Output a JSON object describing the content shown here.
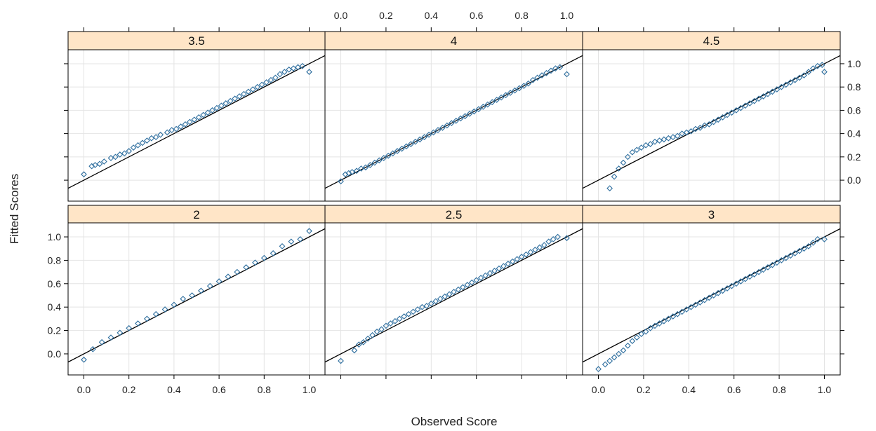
{
  "chart_data": {
    "type": "scatter",
    "layout": {
      "rows": 2,
      "cols": 3
    },
    "xlabel": "Observed Score",
    "ylabel": "Fitted Scores",
    "xlim": [
      -0.07,
      1.07
    ],
    "ylim": [
      -0.18,
      1.12
    ],
    "x_ticks": [
      "0.0",
      "0.2",
      "0.4",
      "0.6",
      "0.8",
      "1.0"
    ],
    "y_ticks": [
      "0.0",
      "0.2",
      "0.4",
      "0.6",
      "0.8",
      "1.0"
    ],
    "grid": true,
    "reference_line": {
      "slope": 1,
      "intercept": 0
    },
    "colors": {
      "points": "#2f6f9f",
      "strip": "#ffe5c7",
      "grid": "#e4e4e4",
      "line": "#000000",
      "frame": "#000000"
    },
    "panels": [
      {
        "label": "3.5",
        "points": [
          [
            0.0,
            0.05
          ],
          [
            0.035,
            0.12
          ],
          [
            0.05,
            0.13
          ],
          [
            0.07,
            0.14
          ],
          [
            0.09,
            0.16
          ],
          [
            0.12,
            0.19
          ],
          [
            0.14,
            0.2
          ],
          [
            0.16,
            0.22
          ],
          [
            0.18,
            0.23
          ],
          [
            0.2,
            0.25
          ],
          [
            0.22,
            0.28
          ],
          [
            0.24,
            0.3
          ],
          [
            0.26,
            0.32
          ],
          [
            0.28,
            0.34
          ],
          [
            0.3,
            0.36
          ],
          [
            0.32,
            0.37
          ],
          [
            0.34,
            0.39
          ],
          [
            0.37,
            0.41
          ],
          [
            0.39,
            0.43
          ],
          [
            0.41,
            0.44
          ],
          [
            0.43,
            0.46
          ],
          [
            0.45,
            0.48
          ],
          [
            0.47,
            0.5
          ],
          [
            0.49,
            0.52
          ],
          [
            0.51,
            0.54
          ],
          [
            0.53,
            0.56
          ],
          [
            0.55,
            0.58
          ],
          [
            0.57,
            0.6
          ],
          [
            0.59,
            0.62
          ],
          [
            0.61,
            0.64
          ],
          [
            0.63,
            0.66
          ],
          [
            0.65,
            0.68
          ],
          [
            0.67,
            0.7
          ],
          [
            0.69,
            0.72
          ],
          [
            0.71,
            0.74
          ],
          [
            0.73,
            0.76
          ],
          [
            0.75,
            0.78
          ],
          [
            0.77,
            0.8
          ],
          [
            0.79,
            0.82
          ],
          [
            0.81,
            0.84
          ],
          [
            0.83,
            0.86
          ],
          [
            0.85,
            0.88
          ],
          [
            0.87,
            0.91
          ],
          [
            0.89,
            0.93
          ],
          [
            0.91,
            0.95
          ],
          [
            0.93,
            0.96
          ],
          [
            0.95,
            0.97
          ],
          [
            0.97,
            0.98
          ],
          [
            1.0,
            0.93
          ]
        ]
      },
      {
        "label": "4",
        "points": [
          [
            0.0,
            -0.01
          ],
          [
            0.02,
            0.05
          ],
          [
            0.035,
            0.06
          ],
          [
            0.05,
            0.07
          ],
          [
            0.07,
            0.08
          ],
          [
            0.09,
            0.1
          ],
          [
            0.11,
            0.11
          ],
          [
            0.13,
            0.13
          ],
          [
            0.15,
            0.15
          ],
          [
            0.17,
            0.17
          ],
          [
            0.19,
            0.19
          ],
          [
            0.21,
            0.21
          ],
          [
            0.23,
            0.23
          ],
          [
            0.25,
            0.25
          ],
          [
            0.27,
            0.27
          ],
          [
            0.29,
            0.29
          ],
          [
            0.31,
            0.31
          ],
          [
            0.33,
            0.33
          ],
          [
            0.35,
            0.35
          ],
          [
            0.37,
            0.37
          ],
          [
            0.39,
            0.39
          ],
          [
            0.41,
            0.41
          ],
          [
            0.43,
            0.43
          ],
          [
            0.45,
            0.45
          ],
          [
            0.47,
            0.47
          ],
          [
            0.49,
            0.49
          ],
          [
            0.51,
            0.51
          ],
          [
            0.53,
            0.53
          ],
          [
            0.55,
            0.55
          ],
          [
            0.57,
            0.57
          ],
          [
            0.59,
            0.59
          ],
          [
            0.61,
            0.61
          ],
          [
            0.63,
            0.63
          ],
          [
            0.65,
            0.65
          ],
          [
            0.67,
            0.67
          ],
          [
            0.69,
            0.69
          ],
          [
            0.71,
            0.71
          ],
          [
            0.73,
            0.73
          ],
          [
            0.75,
            0.75
          ],
          [
            0.77,
            0.77
          ],
          [
            0.79,
            0.79
          ],
          [
            0.81,
            0.81
          ],
          [
            0.83,
            0.83
          ],
          [
            0.85,
            0.86
          ],
          [
            0.87,
            0.88
          ],
          [
            0.89,
            0.9
          ],
          [
            0.91,
            0.92
          ],
          [
            0.93,
            0.94
          ],
          [
            0.95,
            0.96
          ],
          [
            0.97,
            0.97
          ],
          [
            1.0,
            0.91
          ]
        ]
      },
      {
        "label": "4.5",
        "points": [
          [
            0.05,
            -0.07
          ],
          [
            0.07,
            0.03
          ],
          [
            0.09,
            0.1
          ],
          [
            0.11,
            0.15
          ],
          [
            0.13,
            0.2
          ],
          [
            0.15,
            0.24
          ],
          [
            0.17,
            0.26
          ],
          [
            0.19,
            0.28
          ],
          [
            0.21,
            0.3
          ],
          [
            0.23,
            0.31
          ],
          [
            0.25,
            0.33
          ],
          [
            0.27,
            0.34
          ],
          [
            0.29,
            0.35
          ],
          [
            0.31,
            0.36
          ],
          [
            0.33,
            0.37
          ],
          [
            0.35,
            0.38
          ],
          [
            0.37,
            0.4
          ],
          [
            0.39,
            0.41
          ],
          [
            0.41,
            0.42
          ],
          [
            0.43,
            0.44
          ],
          [
            0.45,
            0.45
          ],
          [
            0.47,
            0.47
          ],
          [
            0.49,
            0.48
          ],
          [
            0.51,
            0.5
          ],
          [
            0.53,
            0.52
          ],
          [
            0.55,
            0.54
          ],
          [
            0.57,
            0.56
          ],
          [
            0.59,
            0.58
          ],
          [
            0.61,
            0.6
          ],
          [
            0.63,
            0.62
          ],
          [
            0.65,
            0.64
          ],
          [
            0.67,
            0.66
          ],
          [
            0.69,
            0.68
          ],
          [
            0.71,
            0.7
          ],
          [
            0.73,
            0.72
          ],
          [
            0.75,
            0.74
          ],
          [
            0.77,
            0.76
          ],
          [
            0.79,
            0.78
          ],
          [
            0.81,
            0.8
          ],
          [
            0.83,
            0.82
          ],
          [
            0.85,
            0.84
          ],
          [
            0.87,
            0.86
          ],
          [
            0.89,
            0.88
          ],
          [
            0.91,
            0.9
          ],
          [
            0.93,
            0.93
          ],
          [
            0.95,
            0.96
          ],
          [
            0.97,
            0.98
          ],
          [
            0.99,
            0.99
          ],
          [
            1.0,
            0.93
          ]
        ]
      },
      {
        "label": "2",
        "points": [
          [
            0.0,
            -0.05
          ],
          [
            0.04,
            0.04
          ],
          [
            0.08,
            0.1
          ],
          [
            0.12,
            0.14
          ],
          [
            0.16,
            0.18
          ],
          [
            0.2,
            0.22
          ],
          [
            0.24,
            0.26
          ],
          [
            0.28,
            0.3
          ],
          [
            0.32,
            0.34
          ],
          [
            0.36,
            0.38
          ],
          [
            0.4,
            0.42
          ],
          [
            0.44,
            0.47
          ],
          [
            0.48,
            0.5
          ],
          [
            0.52,
            0.54
          ],
          [
            0.56,
            0.58
          ],
          [
            0.6,
            0.62
          ],
          [
            0.64,
            0.66
          ],
          [
            0.68,
            0.7
          ],
          [
            0.72,
            0.74
          ],
          [
            0.76,
            0.78
          ],
          [
            0.8,
            0.82
          ],
          [
            0.84,
            0.86
          ],
          [
            0.88,
            0.92
          ],
          [
            0.92,
            0.96
          ],
          [
            0.96,
            0.98
          ],
          [
            1.0,
            1.05
          ]
        ]
      },
      {
        "label": "2.5",
        "points": [
          [
            0.0,
            -0.06
          ],
          [
            0.06,
            0.03
          ],
          [
            0.08,
            0.08
          ],
          [
            0.1,
            0.1
          ],
          [
            0.12,
            0.13
          ],
          [
            0.14,
            0.16
          ],
          [
            0.16,
            0.19
          ],
          [
            0.18,
            0.21
          ],
          [
            0.2,
            0.24
          ],
          [
            0.22,
            0.26
          ],
          [
            0.24,
            0.28
          ],
          [
            0.26,
            0.3
          ],
          [
            0.28,
            0.32
          ],
          [
            0.3,
            0.34
          ],
          [
            0.32,
            0.36
          ],
          [
            0.34,
            0.38
          ],
          [
            0.36,
            0.4
          ],
          [
            0.38,
            0.41
          ],
          [
            0.4,
            0.43
          ],
          [
            0.42,
            0.45
          ],
          [
            0.44,
            0.47
          ],
          [
            0.46,
            0.49
          ],
          [
            0.48,
            0.51
          ],
          [
            0.5,
            0.53
          ],
          [
            0.52,
            0.55
          ],
          [
            0.54,
            0.57
          ],
          [
            0.56,
            0.59
          ],
          [
            0.58,
            0.61
          ],
          [
            0.6,
            0.63
          ],
          [
            0.62,
            0.65
          ],
          [
            0.64,
            0.67
          ],
          [
            0.66,
            0.69
          ],
          [
            0.68,
            0.71
          ],
          [
            0.7,
            0.73
          ],
          [
            0.72,
            0.75
          ],
          [
            0.74,
            0.77
          ],
          [
            0.76,
            0.79
          ],
          [
            0.78,
            0.81
          ],
          [
            0.8,
            0.83
          ],
          [
            0.82,
            0.85
          ],
          [
            0.84,
            0.87
          ],
          [
            0.86,
            0.89
          ],
          [
            0.88,
            0.91
          ],
          [
            0.9,
            0.93
          ],
          [
            0.92,
            0.96
          ],
          [
            0.94,
            0.98
          ],
          [
            0.96,
            1.0
          ],
          [
            1.0,
            0.99
          ]
        ]
      },
      {
        "label": "3",
        "points": [
          [
            0.0,
            -0.13
          ],
          [
            0.03,
            -0.09
          ],
          [
            0.05,
            -0.06
          ],
          [
            0.07,
            -0.03
          ],
          [
            0.09,
            0.0
          ],
          [
            0.11,
            0.03
          ],
          [
            0.13,
            0.07
          ],
          [
            0.15,
            0.11
          ],
          [
            0.17,
            0.14
          ],
          [
            0.19,
            0.17
          ],
          [
            0.21,
            0.19
          ],
          [
            0.23,
            0.22
          ],
          [
            0.25,
            0.24
          ],
          [
            0.27,
            0.26
          ],
          [
            0.29,
            0.28
          ],
          [
            0.31,
            0.3
          ],
          [
            0.33,
            0.32
          ],
          [
            0.35,
            0.34
          ],
          [
            0.37,
            0.36
          ],
          [
            0.39,
            0.38
          ],
          [
            0.41,
            0.4
          ],
          [
            0.43,
            0.42
          ],
          [
            0.45,
            0.44
          ],
          [
            0.47,
            0.46
          ],
          [
            0.49,
            0.48
          ],
          [
            0.51,
            0.5
          ],
          [
            0.53,
            0.52
          ],
          [
            0.55,
            0.54
          ],
          [
            0.57,
            0.56
          ],
          [
            0.59,
            0.58
          ],
          [
            0.61,
            0.6
          ],
          [
            0.63,
            0.62
          ],
          [
            0.65,
            0.64
          ],
          [
            0.67,
            0.66
          ],
          [
            0.69,
            0.68
          ],
          [
            0.71,
            0.7
          ],
          [
            0.73,
            0.72
          ],
          [
            0.75,
            0.74
          ],
          [
            0.77,
            0.76
          ],
          [
            0.79,
            0.78
          ],
          [
            0.81,
            0.8
          ],
          [
            0.83,
            0.82
          ],
          [
            0.85,
            0.84
          ],
          [
            0.87,
            0.86
          ],
          [
            0.89,
            0.88
          ],
          [
            0.91,
            0.9
          ],
          [
            0.93,
            0.92
          ],
          [
            0.95,
            0.95
          ],
          [
            0.97,
            0.98
          ],
          [
            1.0,
            0.98
          ]
        ]
      }
    ]
  }
}
